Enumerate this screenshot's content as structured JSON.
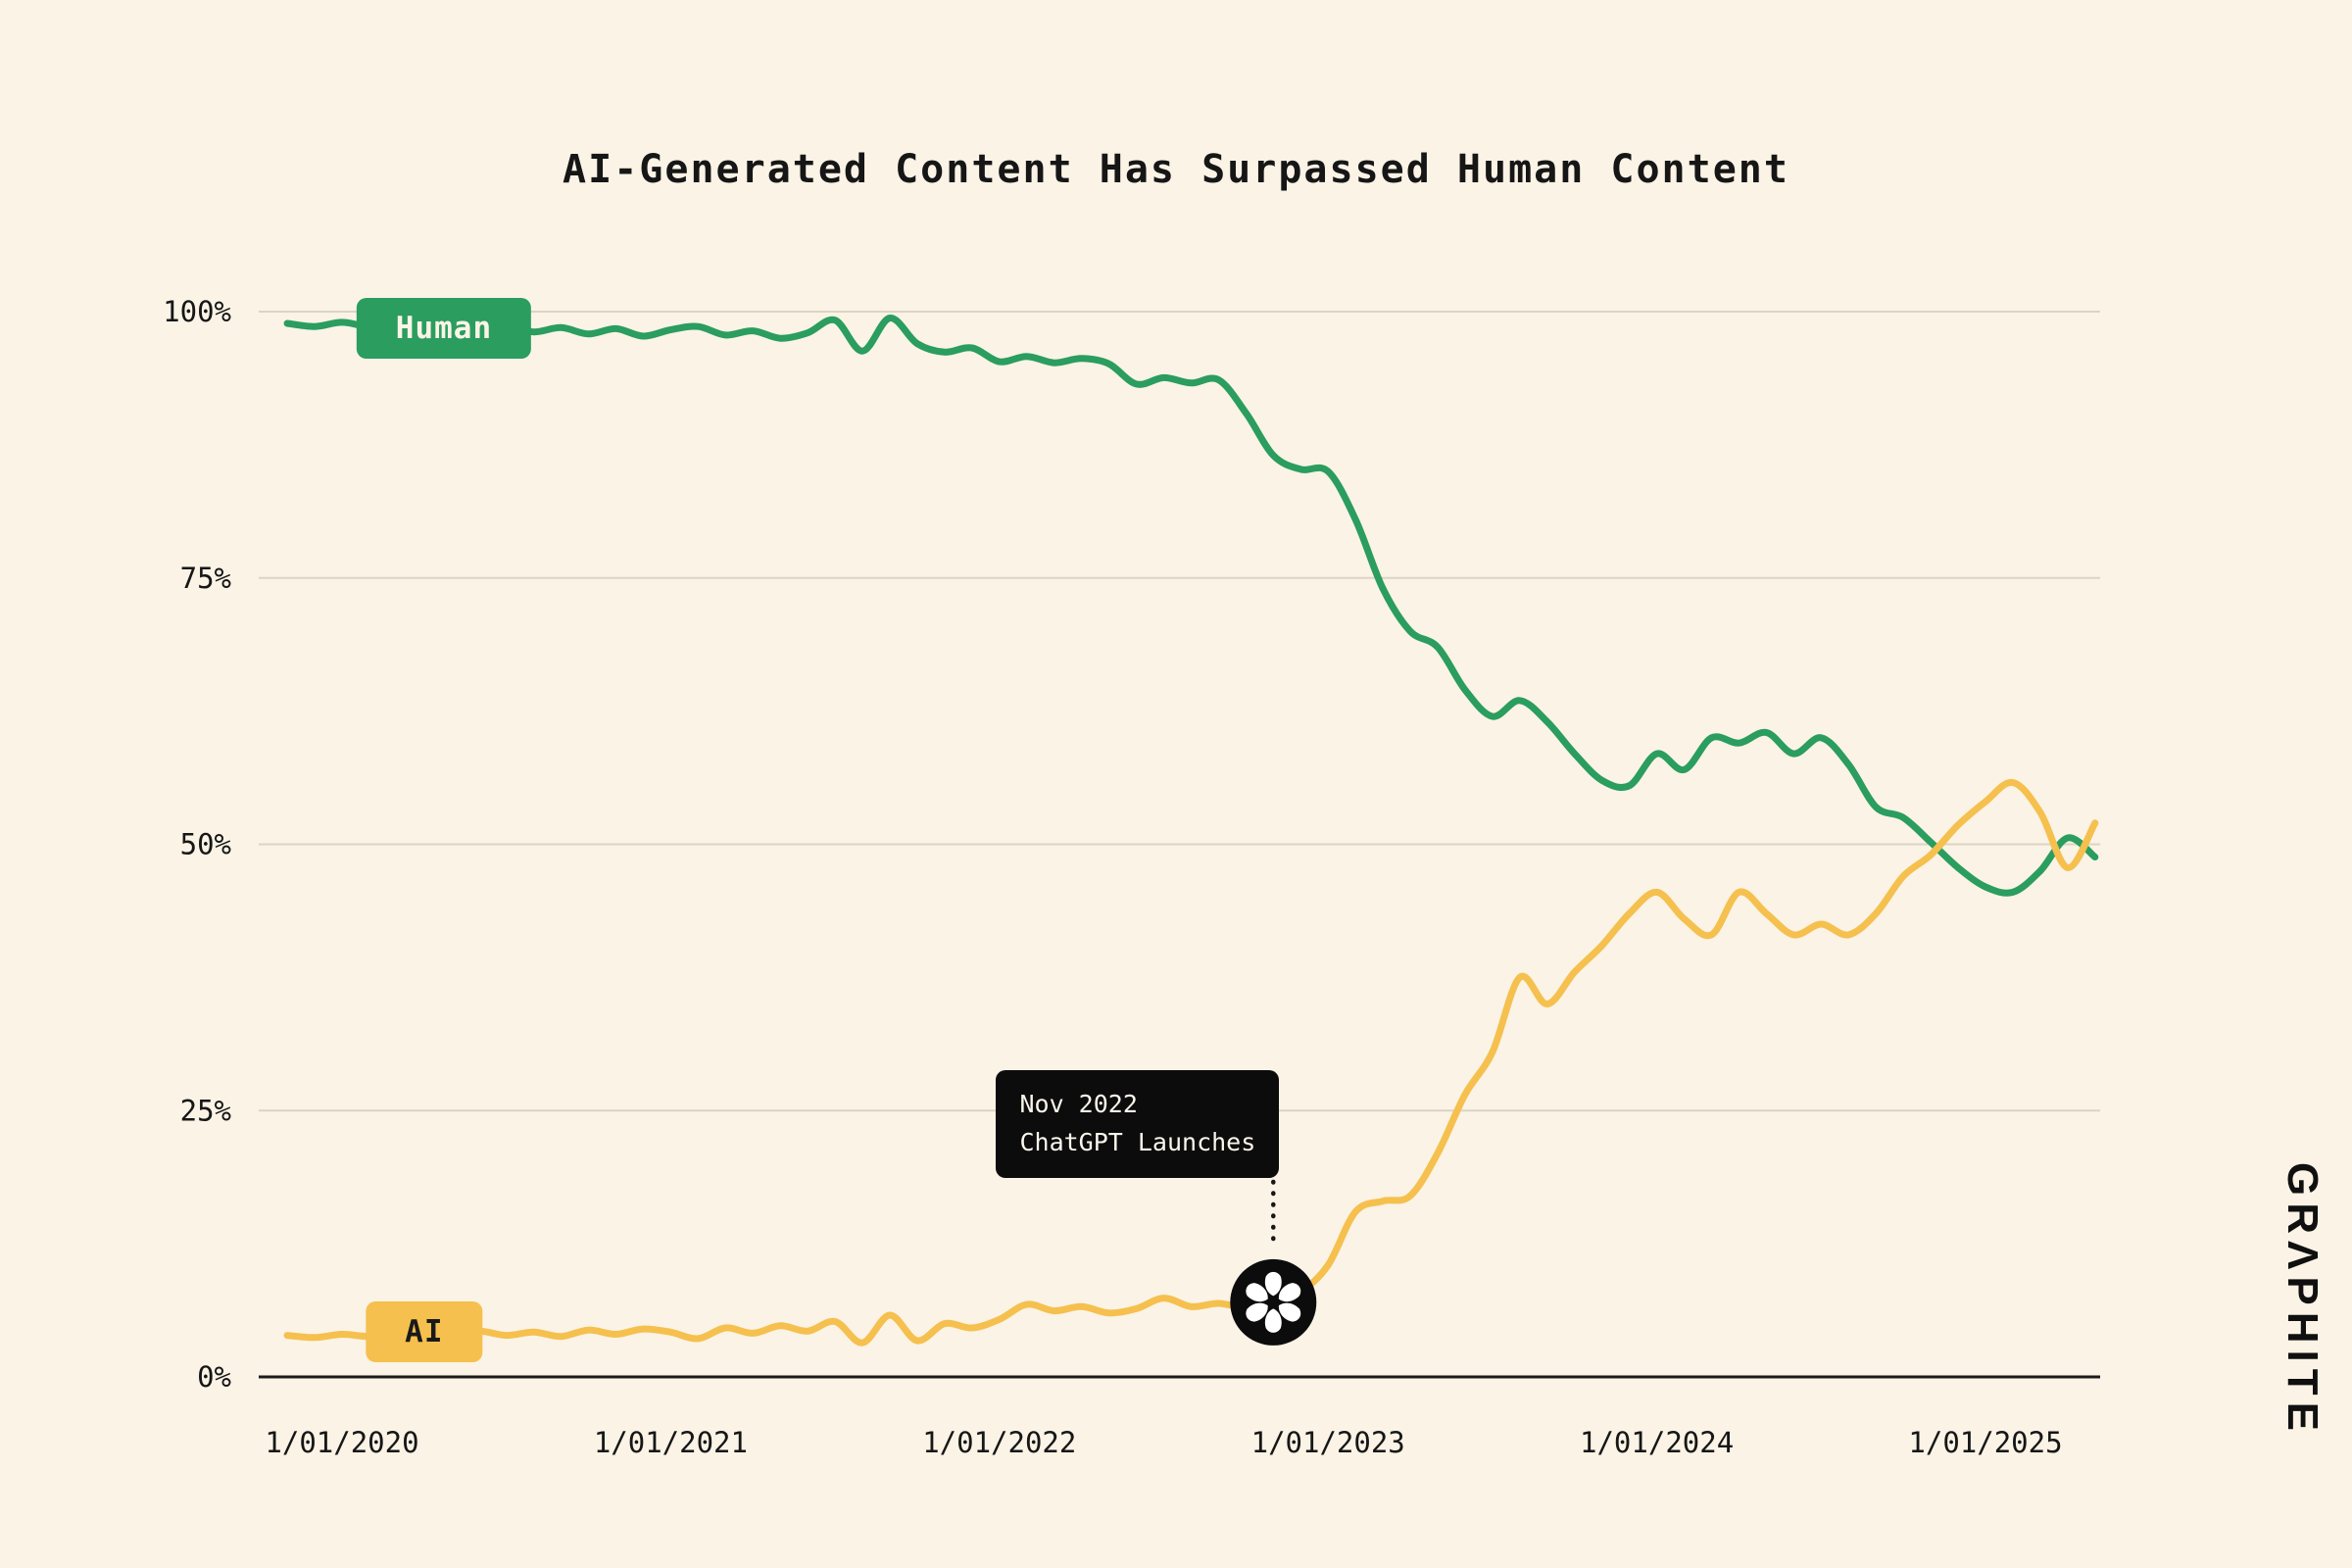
{
  "page": {
    "background_color": "#FAF3E6",
    "grid_color": "#DCD4C3",
    "axis_color": "#1B1B1B",
    "text_color": "#161616"
  },
  "branding": {
    "logo_text": "GRΛPHITE"
  },
  "chart_data": {
    "type": "line",
    "title": "AI-Generated Content Has Surpassed Human Content",
    "xlabel": "",
    "ylabel": "",
    "grid": true,
    "x_start_year": 2019.8333,
    "x_step_years": 0.0833333,
    "x_axis": {
      "tick_years": [
        2020,
        2021,
        2022,
        2023,
        2024,
        2025
      ],
      "tick_labels": [
        "1/01/2020",
        "1/01/2021",
        "1/01/2022",
        "1/01/2023",
        "1/01/2024",
        "1/01/2025"
      ]
    },
    "y_axis": {
      "range": [
        0,
        100
      ],
      "ticks": [
        0,
        25,
        50,
        75,
        100
      ],
      "tick_labels": [
        "0%",
        "25%",
        "50%",
        "75%",
        "100%"
      ]
    },
    "series": [
      {
        "name": "Human",
        "color": "#2A9D5F",
        "values": [
          98.9,
          98.6,
          99.0,
          98.6,
          98.9,
          98.4,
          98.8,
          98.2,
          98.7,
          98.1,
          98.5,
          97.9,
          98.4,
          97.7,
          98.3,
          98.6,
          97.8,
          98.2,
          97.5,
          98.0,
          99.2,
          96.3,
          99.4,
          97.0,
          96.2,
          96.6,
          95.3,
          95.8,
          95.2,
          95.6,
          95.1,
          93.2,
          93.8,
          93.3,
          93.6,
          90.5,
          86.5,
          85.2,
          85.0,
          80.5,
          74.0,
          70.0,
          68.5,
          64.5,
          62.0,
          63.5,
          61.5,
          58.5,
          56.0,
          55.5,
          58.5,
          57.0,
          60.0,
          59.5,
          60.5,
          58.5,
          60.0,
          57.5,
          53.5,
          52.5,
          50.2,
          47.8,
          46.0,
          45.5,
          47.5,
          50.6,
          48.8
        ]
      },
      {
        "name": "AI",
        "color": "#F5C04E",
        "values": [
          3.9,
          3.7,
          4.0,
          3.8,
          4.1,
          3.7,
          4.0,
          4.3,
          3.9,
          4.2,
          3.8,
          4.4,
          4.0,
          4.5,
          4.2,
          3.6,
          4.6,
          4.1,
          4.8,
          4.3,
          5.2,
          3.2,
          5.8,
          3.4,
          5.0,
          4.6,
          5.4,
          6.8,
          6.2,
          6.6,
          6.0,
          6.4,
          7.4,
          6.6,
          6.9,
          6.5,
          7.0,
          8.0,
          10.5,
          15.5,
          16.5,
          17.0,
          21.0,
          26.5,
          30.5,
          37.5,
          35.0,
          38.0,
          40.5,
          43.5,
          45.5,
          43.0,
          41.5,
          45.5,
          43.5,
          41.5,
          42.5,
          41.5,
          43.5,
          47.0,
          49.0,
          51.8,
          54.0,
          55.8,
          53.0,
          47.8,
          52.0
        ]
      }
    ],
    "legend": [
      {
        "label": "Human",
        "bg": "#2A9D5F",
        "text_color": "#FBF4E7",
        "anchor_year": 2020.31,
        "anchor_pct": 98.4
      },
      {
        "label": "AI",
        "bg": "#F5C04E",
        "text_color": "#1A1A1A",
        "anchor_year": 2020.25,
        "anchor_pct": 4.2
      }
    ],
    "annotation": {
      "line1": "Nov 2022",
      "line2": "ChatGPT Launches",
      "x_year": 2022.8333,
      "marker_pct": 7.0,
      "marker_icon": "openai-logo"
    }
  }
}
